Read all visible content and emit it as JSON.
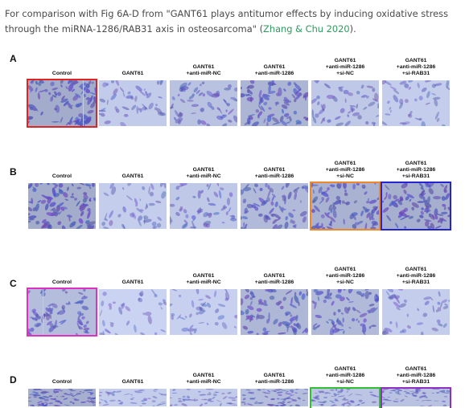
{
  "caption": {
    "pre": "For comparison with Fig 6A-D from \"GANT61 plays antitumor effects by inducing oxidative stress through the miRNA‐1286/RAB31 axis in osteosarcoma\" (",
    "link": "Zhang & Chu 2020",
    "post": ")."
  },
  "rows": [
    {
      "letter": "A",
      "labels": [
        "Control",
        "GANT61",
        "GANT61\n+anti-miR-NC",
        "GANT61\n+anti-miR-1286",
        "GANT61\n+anti-miR-1286\n+si-NC",
        "GANT61\n+anti-miR-1286\n+si-RAB31"
      ],
      "highlights": [
        {
          "col": 0,
          "color": "#e02424"
        }
      ]
    },
    {
      "letter": "B",
      "labels": [
        "Control",
        "GANT61",
        "GANT61\n+anti-miR-NC",
        "GANT61\n+anti-miR-1286",
        "GANT61\n+anti-miR-1286\n+si-NC",
        "GANT61\n+anti-miR-1286\n+si-RAB31"
      ],
      "highlights": [
        {
          "col": 4,
          "color": "#f0882a"
        },
        {
          "col": 5,
          "color": "#2424d0"
        }
      ]
    },
    {
      "letter": "C",
      "labels": [
        "Control",
        "GANT61",
        "GANT61\n+anti-miR-NC",
        "GANT61\n+anti-miR-1286",
        "GANT61\n+anti-miR-1286\n+si-NC",
        "GANT61\n+anti-miR-1286\n+si-RAB31"
      ],
      "highlights": [
        {
          "col": 0,
          "color": "#e030c0"
        }
      ]
    },
    {
      "letter": "D",
      "labels": [
        "Control",
        "GANT61",
        "GANT61\n+anti-miR-NC",
        "GANT61\n+anti-miR-1286",
        "GANT61\n+anti-miR-1286\n+si-NC",
        "GANT61\n+anti-miR-1286\n+si-RAB31"
      ],
      "highlights": [
        {
          "col": 4,
          "color": "#30c030"
        },
        {
          "col": 5,
          "color": "#9030c0"
        }
      ]
    }
  ],
  "colors": {
    "accent_link": "#2e9a5f",
    "stain_dark": "#5058b8",
    "stain_light": "#c8d4f0"
  }
}
